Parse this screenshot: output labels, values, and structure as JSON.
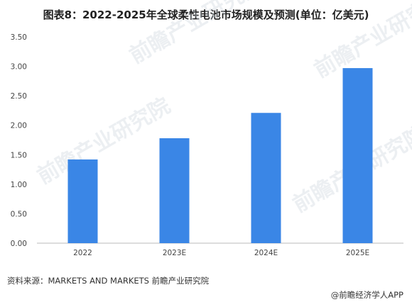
{
  "title": "图表8：2022-2025年全球柔性电池市场规模及预测(单位：亿美元)",
  "chart_data": {
    "type": "bar",
    "categories": [
      "2022",
      "2023E",
      "2024E",
      "2025E"
    ],
    "values": [
      1.42,
      1.78,
      2.21,
      2.97
    ],
    "ylim": [
      0,
      3.5
    ],
    "yticks": [
      "0.00",
      "0.50",
      "1.00",
      "1.50",
      "2.00",
      "2.50",
      "3.00",
      "3.50"
    ],
    "grid": false,
    "bar_color": "#3a86e6"
  },
  "source": "资料来源：MARKETS AND MARKETS 前瞻产业研究院",
  "brand": "@前瞻经济学人APP",
  "watermark": "前瞻产业研究院"
}
